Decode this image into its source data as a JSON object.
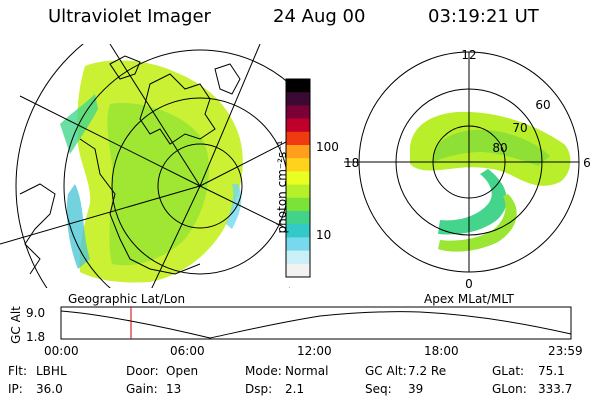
{
  "header": {
    "instrument": "Ultraviolet Imager",
    "date": "24 Aug 00",
    "time": "03:19:21 UT"
  },
  "colorbar": {
    "unit_label": "photon cm⁻²s⁻¹",
    "tick_labels": [
      "100",
      "10"
    ],
    "colors": [
      "#000000",
      "#3a0a33",
      "#7a0036",
      "#c0002a",
      "#f03a10",
      "#ff9f1c",
      "#ffd21c",
      "#e9ff22",
      "#b5f02a",
      "#7be23a",
      "#43d28a",
      "#33c9c9",
      "#77d8ee",
      "#c9f0f6",
      "#f2f2f2"
    ]
  },
  "left_map": {
    "label": "Geographic Lat/Lon"
  },
  "right_map": {
    "label": "Apex MLat/MLT",
    "mlt_labels": {
      "top": "12",
      "left": "18",
      "right": "6",
      "bottom": "0"
    },
    "mlat_labels": [
      "60",
      "70",
      "80"
    ]
  },
  "altitude_plot": {
    "ylabel": "GC Alt",
    "yticks": [
      "9.0",
      "1.8"
    ],
    "xticks": [
      "00:00",
      "06:00",
      "12:00",
      "18:00",
      "23:59"
    ],
    "marker_color": "#cc0000"
  },
  "status": {
    "row1": [
      {
        "key": "Flt:",
        "value": "LBHL"
      },
      {
        "key": "Door:",
        "value": "Open"
      },
      {
        "key": "Mode:",
        "value": "Normal"
      },
      {
        "key": "GC Alt:",
        "value": "7.2 Re"
      },
      {
        "key": "GLat:",
        "value": "75.1"
      }
    ],
    "row2": [
      {
        "key": "IP:",
        "value": "36.0"
      },
      {
        "key": "Gain:",
        "value": "13"
      },
      {
        "key": "Dsp:",
        "value": "2.1"
      },
      {
        "key": "Seq:",
        "value": "39"
      },
      {
        "key": "GLon:",
        "value": "333.7"
      }
    ]
  }
}
